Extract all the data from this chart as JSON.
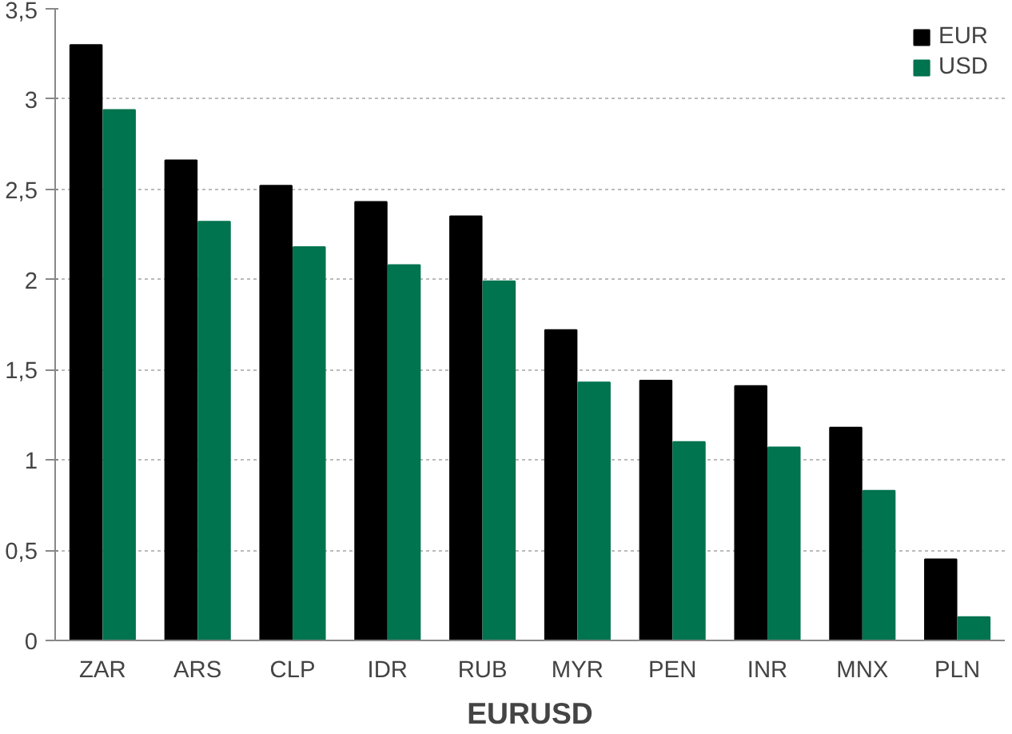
{
  "chart_data": {
    "type": "bar",
    "xlabel": "EURUSD",
    "categories": [
      "ZAR",
      "ARS",
      "CLP",
      "IDR",
      "RUB",
      "MYR",
      "PEN",
      "INR",
      "MNX",
      "PLN"
    ],
    "series": [
      {
        "name": "EUR",
        "color": "#000000",
        "values": [
          3.3,
          2.66,
          2.52,
          2.43,
          2.35,
          1.72,
          1.44,
          1.41,
          1.18,
          0.45
        ]
      },
      {
        "name": "USD",
        "color": "#00734f",
        "values": [
          2.94,
          2.32,
          2.18,
          2.08,
          1.99,
          1.43,
          1.1,
          1.07,
          0.83,
          0.13
        ]
      }
    ],
    "ylim": [
      0,
      3.5
    ],
    "yticks": [
      0,
      {
        "value": 0.5,
        "label": "0,5"
      },
      1,
      {
        "value": 1.5,
        "label": "1,5"
      },
      2,
      {
        "value": 2.5,
        "label": "2,5"
      },
      3,
      {
        "value": 3.5,
        "label": "3,5"
      }
    ],
    "grid": "y",
    "legend": "top right"
  }
}
